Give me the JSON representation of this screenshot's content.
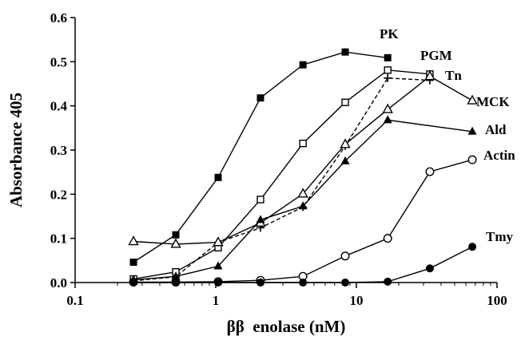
{
  "chart_data": {
    "type": "line",
    "xlabel": "ββ  enolase (nM)",
    "ylabel": "Absorbance 405",
    "xscale": "log",
    "xlim": [
      0.1,
      100
    ],
    "ylim": [
      0,
      0.6
    ],
    "xticks": [
      0.1,
      1,
      10,
      100
    ],
    "xtick_labels": [
      "0.1",
      "1",
      "10",
      "100"
    ],
    "yticks": [
      0,
      0.1,
      0.2,
      0.3,
      0.4,
      0.5,
      0.6
    ],
    "ytick_labels": [
      "0.0",
      "0.1",
      "0.2",
      "0.3",
      "0.4",
      "0.5",
      "0.6"
    ],
    "grid": false,
    "legend": "labels at series ends",
    "series": [
      {
        "name": "PK",
        "marker": "filled-square",
        "dash": false,
        "x": [
          0.26,
          0.52,
          1.04,
          2.08,
          4.17,
          8.33,
          16.7
        ],
        "y": [
          0.046,
          0.108,
          0.238,
          0.418,
          0.493,
          0.522,
          0.509
        ]
      },
      {
        "name": "PGM",
        "marker": "open-square",
        "dash": false,
        "x": [
          0.26,
          0.52,
          1.04,
          2.08,
          4.17,
          8.33,
          16.7,
          33.3
        ],
        "y": [
          0.008,
          0.024,
          0.079,
          0.188,
          0.315,
          0.408,
          0.481,
          0.472
        ]
      },
      {
        "name": "Tn",
        "marker": "plus",
        "dash": true,
        "x": [
          0.26,
          0.52,
          1.04,
          2.08,
          4.17,
          8.33,
          16.7,
          33.3
        ],
        "y": [
          0.004,
          0.013,
          0.091,
          0.124,
          0.171,
          0.309,
          0.463,
          0.458
        ]
      },
      {
        "name": "MCK",
        "marker": "open-triangle",
        "dash": false,
        "x": [
          0.26,
          0.52,
          1.04,
          2.08,
          4.17,
          8.33,
          16.7,
          33.3,
          66.7
        ],
        "y": [
          0.093,
          0.087,
          0.091,
          0.135,
          0.201,
          0.313,
          0.392,
          0.467,
          0.412
        ]
      },
      {
        "name": "Ald",
        "marker": "filled-triangle",
        "dash": false,
        "x": [
          0.26,
          0.52,
          1.04,
          2.08,
          4.17,
          8.33,
          16.7,
          66.7
        ],
        "y": [
          0.006,
          0.014,
          0.037,
          0.142,
          0.173,
          0.275,
          0.368,
          0.342
        ]
      },
      {
        "name": "Actin",
        "marker": "open-circle",
        "dash": false,
        "x": [
          0.26,
          0.52,
          1.04,
          2.08,
          4.17,
          8.33,
          16.7,
          33.3,
          66.7
        ],
        "y": [
          0.001,
          0.001,
          0.002,
          0.005,
          0.014,
          0.06,
          0.1,
          0.251,
          0.278
        ]
      },
      {
        "name": "Tmy",
        "marker": "filled-circle",
        "dash": false,
        "x": [
          0.26,
          0.52,
          1.04,
          2.08,
          4.17,
          8.33,
          16.7,
          33.3,
          66.7
        ],
        "y": [
          0.0,
          0.0,
          0.0,
          0.0,
          0.0,
          0.0,
          0.002,
          0.032,
          0.081
        ]
      }
    ]
  }
}
